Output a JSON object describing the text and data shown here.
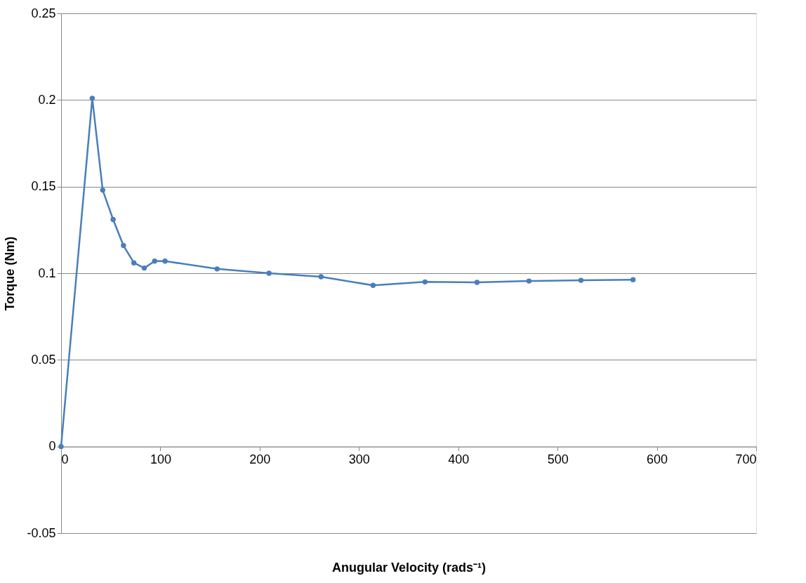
{
  "chart_data": {
    "type": "line",
    "xlabel": "Anugular Velocity (rads⁻¹)",
    "ylabel": "Torque (Nm)",
    "x": [
      0,
      31.4,
      41.9,
      52.4,
      62.8,
      73.3,
      83.8,
      94.2,
      104.7,
      157.1,
      209.4,
      261.8,
      314.2,
      366.5,
      418.9,
      471.2,
      523.6,
      576.0
    ],
    "series": [
      {
        "color": "#4a7ebb",
        "values": [
          0,
          0.201,
          0.148,
          0.131,
          0.116,
          0.106,
          0.103,
          0.107,
          0.107,
          0.1025,
          0.1,
          0.098,
          0.093,
          0.095,
          0.0947,
          0.0955,
          0.0959,
          0.0963
        ]
      }
    ],
    "xlim": [
      0,
      700
    ],
    "xticks": [
      0,
      100,
      200,
      300,
      400,
      500,
      600,
      700
    ],
    "ylim": [
      -0.05,
      0.25
    ],
    "yticks": [
      -0.05,
      0,
      0.05,
      0.1,
      0.15,
      0.2,
      0.25
    ],
    "grid": "y",
    "marker": "circle",
    "line_style": "solid"
  }
}
